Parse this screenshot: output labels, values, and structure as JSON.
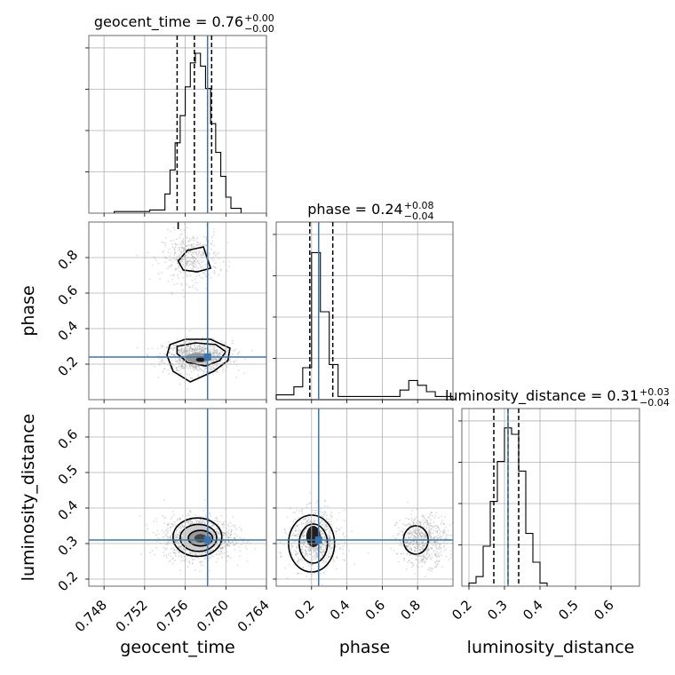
{
  "chart_data": {
    "type": "corner",
    "params": [
      {
        "name": "geocent_time",
        "axis_label": "geocent_time",
        "title": "geocent_time = 0.76",
        "title_sup": "+0.00",
        "title_sub": "−0.00",
        "range": [
          0.7465,
          0.764
        ],
        "ticks": [
          0.748,
          0.752,
          0.756,
          0.76,
          0.764
        ],
        "tick_labels": [
          "0.748",
          "0.752",
          "0.756",
          "0.760",
          "0.764"
        ],
        "injection": 0.7582,
        "quantiles": [
          0.7552,
          0.7569,
          0.7586
        ],
        "hist_edges": [
          0.749,
          0.7525,
          0.754,
          0.7545,
          0.755,
          0.7555,
          0.756,
          0.7565,
          0.757,
          0.7575,
          0.758,
          0.7585,
          0.759,
          0.7595,
          0.76,
          0.7605,
          0.7615
        ],
        "hist_heights": [
          0.01,
          0.02,
          0.12,
          0.27,
          0.44,
          0.61,
          0.79,
          0.94,
          1.0,
          0.92,
          0.78,
          0.56,
          0.38,
          0.23,
          0.1,
          0.03
        ]
      },
      {
        "name": "phase",
        "axis_label": "phase",
        "title": "phase = 0.24",
        "title_sup": "+0.08",
        "title_sub": "−0.04",
        "range": [
          0.0,
          1.0
        ],
        "ticks": [
          0.2,
          0.4,
          0.6,
          0.8
        ],
        "tick_labels": [
          "0.2",
          "0.4",
          "0.6",
          "0.8"
        ],
        "injection": 0.24,
        "quantiles": [
          0.19,
          0.24,
          0.32
        ],
        "hist_edges": [
          0.0,
          0.1,
          0.15,
          0.2,
          0.25,
          0.3,
          0.35,
          0.67,
          0.7,
          0.75,
          0.8,
          0.85,
          0.9,
          1.0
        ],
        "hist_heights": [
          0.03,
          0.08,
          0.2,
          0.92,
          0.55,
          0.22,
          0.02,
          0.02,
          0.06,
          0.12,
          0.09,
          0.05,
          0.02
        ]
      },
      {
        "name": "luminosity_distance",
        "axis_label": "luminosity_distance",
        "title": "luminosity_distance = 0.31",
        "title_sup": "+0.03",
        "title_sub": "−0.04",
        "range": [
          0.18,
          0.68
        ],
        "ticks": [
          0.2,
          0.3,
          0.4,
          0.5,
          0.6
        ],
        "tick_labels": [
          "0.2",
          "0.3",
          "0.4",
          "0.5",
          "0.6"
        ],
        "injection": 0.31,
        "quantiles": [
          0.27,
          0.31,
          0.34
        ],
        "hist_edges": [
          0.2,
          0.22,
          0.24,
          0.26,
          0.28,
          0.3,
          0.32,
          0.34,
          0.36,
          0.38,
          0.4,
          0.42
        ],
        "hist_heights": [
          0.02,
          0.06,
          0.25,
          0.53,
          0.78,
          0.99,
          0.95,
          0.72,
          0.33,
          0.15,
          0.02
        ]
      }
    ],
    "y_ticks_diag": {
      "count": 4
    },
    "axes_y": {
      "phase": {
        "range": [
          0.0,
          1.0
        ],
        "ticks": [
          0.2,
          0.4,
          0.6,
          0.8
        ],
        "tick_labels": [
          "0.2",
          "0.4",
          "0.6",
          "0.8"
        ]
      },
      "luminosity_distance": {
        "range": [
          0.18,
          0.68
        ],
        "ticks": [
          0.2,
          0.3,
          0.4,
          0.5,
          0.6
        ],
        "tick_labels": [
          "0.2",
          "0.3",
          "0.4",
          "0.5",
          "0.6"
        ]
      }
    },
    "injection_color": "#3b75af",
    "grid": true,
    "scatter_color": "#bdbdbd"
  }
}
